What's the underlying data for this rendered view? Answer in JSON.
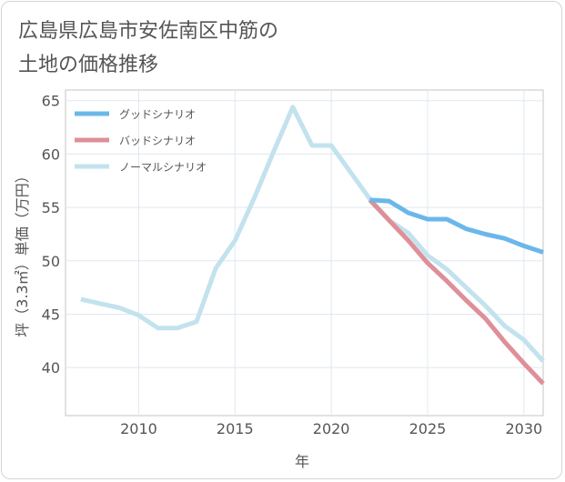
{
  "title": "広島県広島市安佐南区中筋の\n土地の価格推移",
  "chart_data": {
    "type": "line",
    "xlabel": "年",
    "ylabel": "坪（3.3㎡）単価（万円）",
    "xlim": [
      2006.2,
      2031
    ],
    "ylim": [
      35.5,
      66
    ],
    "xticks": [
      2010,
      2015,
      2020,
      2025,
      2030
    ],
    "yticks": [
      40,
      45,
      50,
      55,
      60,
      65
    ],
    "grid": true,
    "legend_position": "top-left",
    "series": [
      {
        "name": "グッドシナリオ",
        "color": "#6bb7ea",
        "x": [
          2022,
          2023,
          2024,
          2025,
          2026,
          2027,
          2028,
          2029,
          2030,
          2031
        ],
        "y": [
          55.7,
          55.6,
          54.5,
          53.9,
          53.9,
          53.0,
          52.5,
          52.1,
          51.4,
          50.8
        ]
      },
      {
        "name": "バッドシナリオ",
        "color": "#de8f98",
        "x": [
          2022,
          2023,
          2024,
          2025,
          2026,
          2027,
          2028,
          2029,
          2030,
          2031
        ],
        "y": [
          55.7,
          53.8,
          51.9,
          49.8,
          48.1,
          46.3,
          44.6,
          42.4,
          40.4,
          38.5
        ]
      },
      {
        "name": "ノーマルシナリオ",
        "color": "#c2e2ee",
        "x": [
          2007,
          2008,
          2009,
          2010,
          2011,
          2012,
          2013,
          2014,
          2015,
          2016,
          2017,
          2018,
          2019,
          2020,
          2021,
          2022,
          2023,
          2024,
          2025,
          2026,
          2027,
          2028,
          2029,
          2030,
          2031
        ],
        "y": [
          46.4,
          46.0,
          45.6,
          44.9,
          43.7,
          43.7,
          44.3,
          49.3,
          51.9,
          55.9,
          60.2,
          64.4,
          60.8,
          60.8,
          58.3,
          55.8,
          53.8,
          52.6,
          50.5,
          49.2,
          47.5,
          45.8,
          43.9,
          42.6,
          40.6
        ]
      }
    ]
  }
}
